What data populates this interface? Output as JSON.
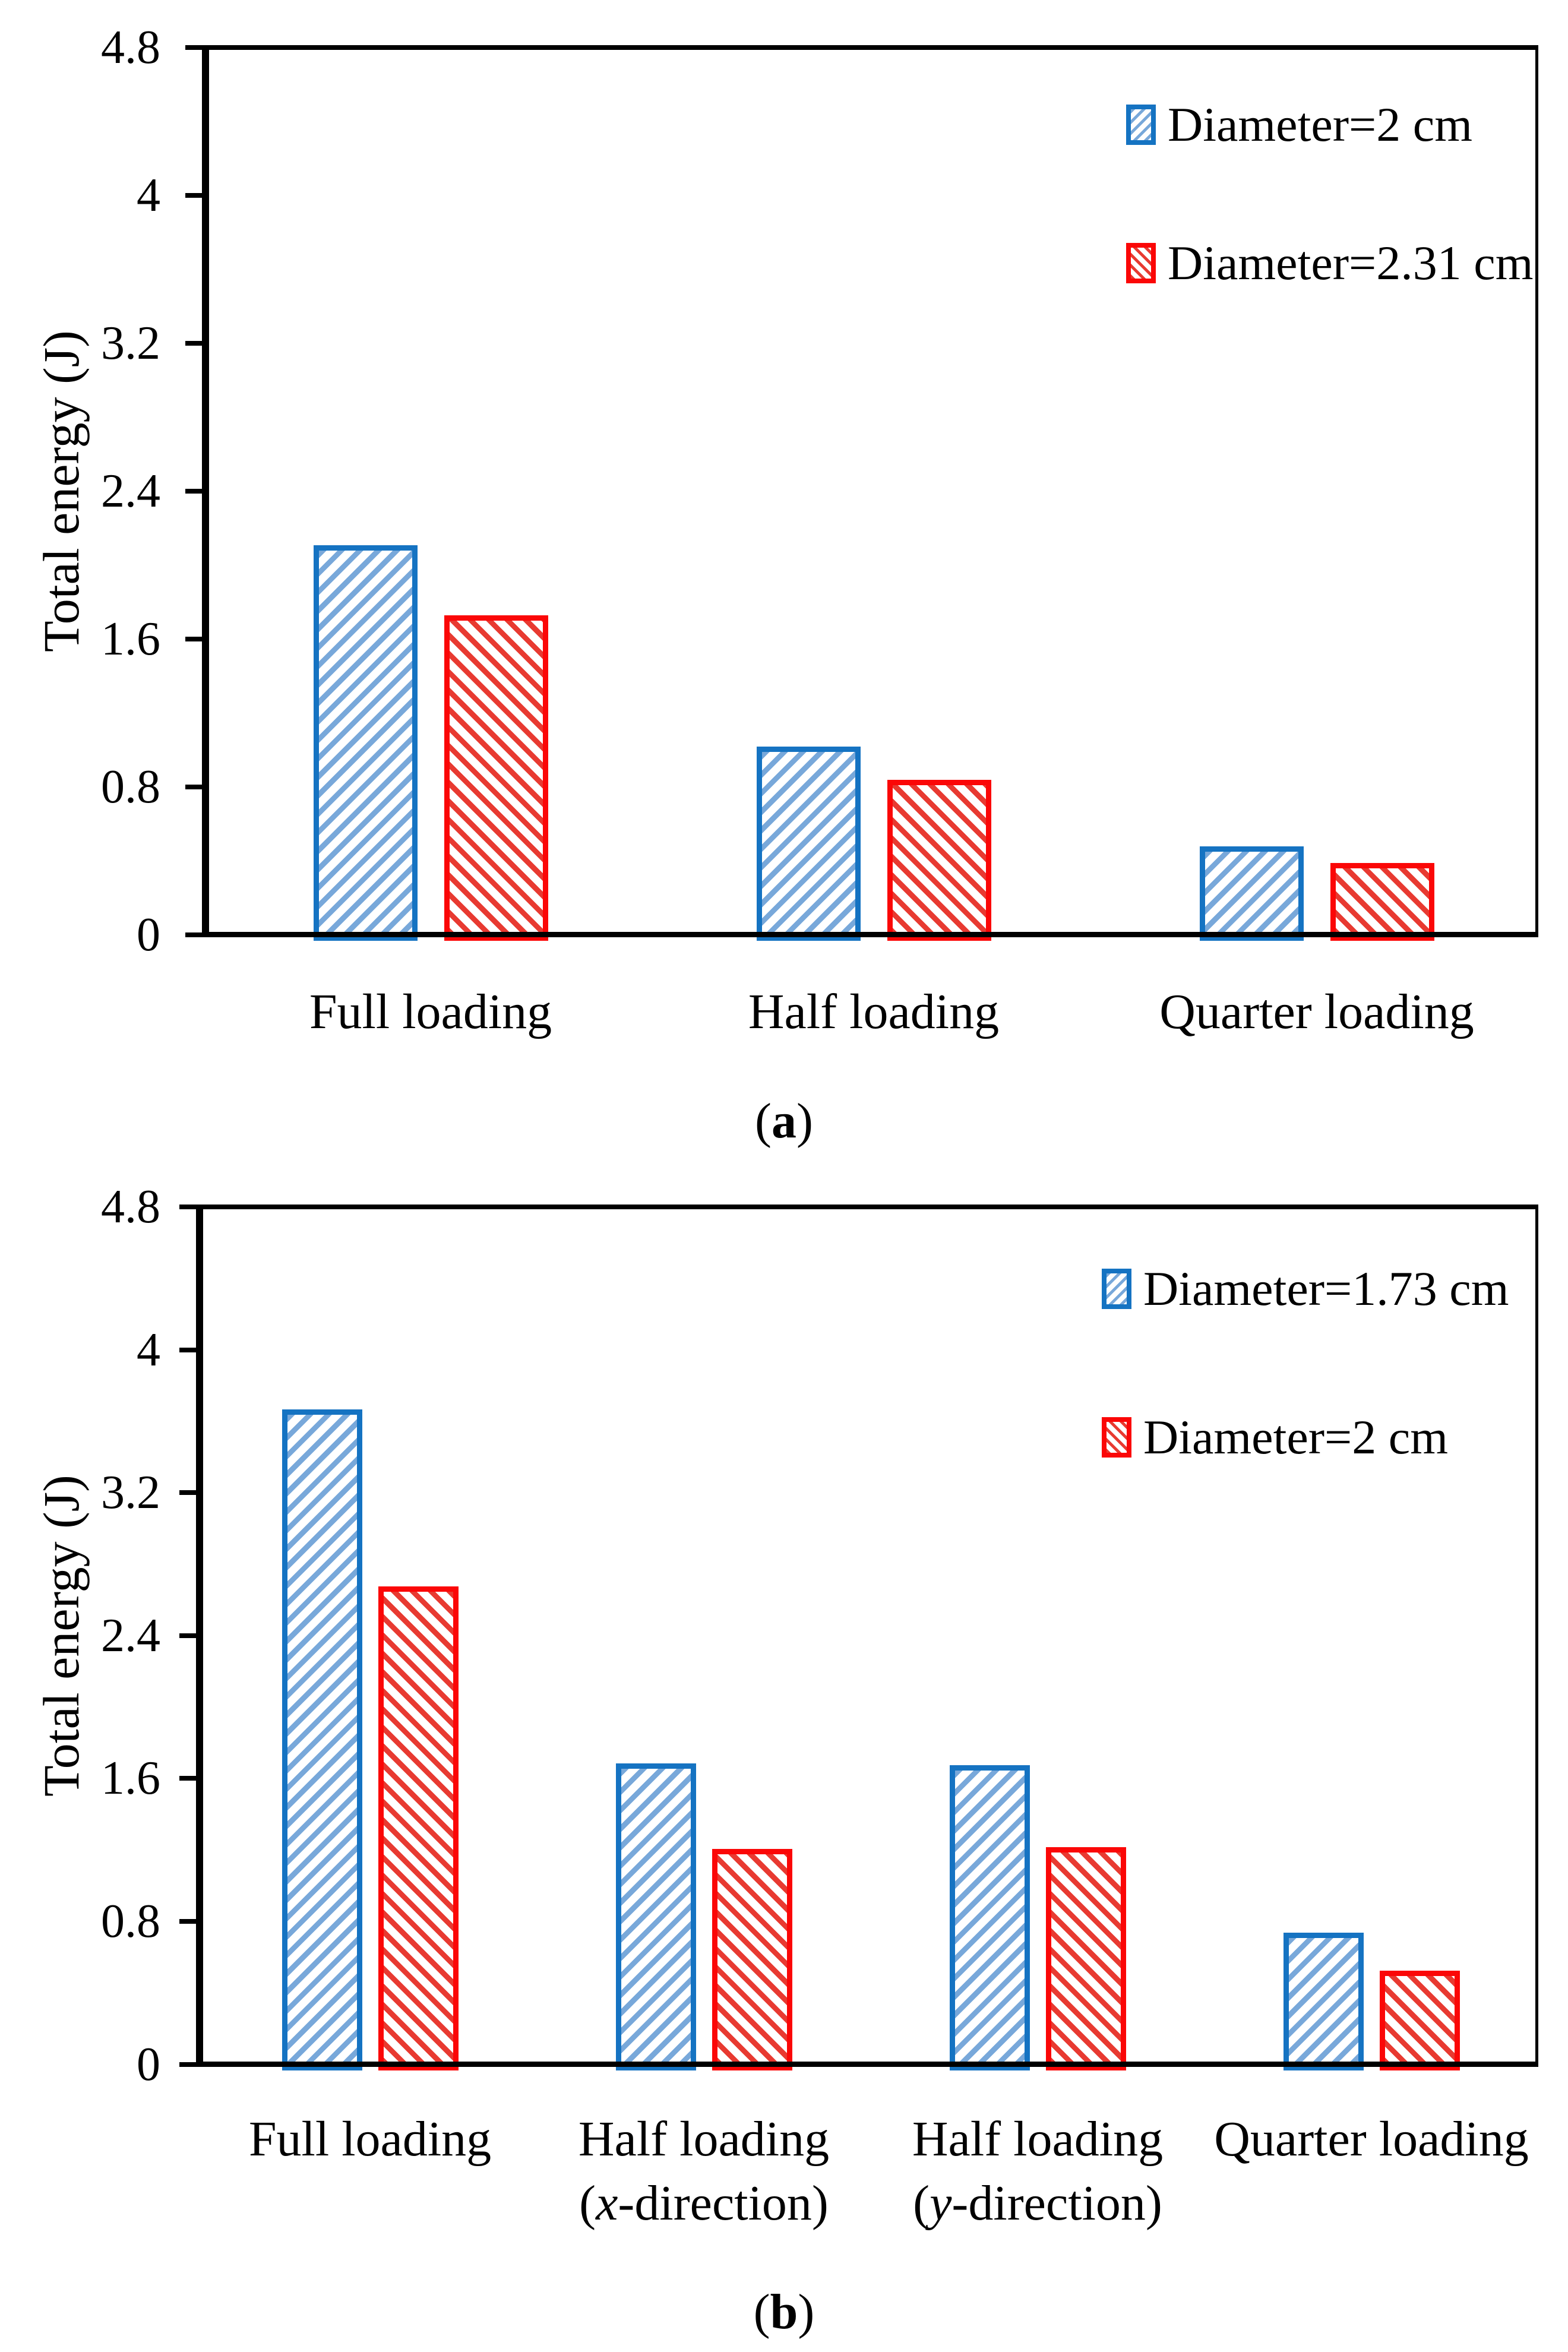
{
  "chart_data": [
    {
      "type": "bar",
      "panel": {
        "open": "(",
        "letter": "a",
        "close": ")"
      },
      "ylabel": "Total energy (J)",
      "ylim": [
        0,
        4.8
      ],
      "grid": false,
      "legend_position": "top-right",
      "yticks": [
        {
          "v": 0,
          "label": "0"
        },
        {
          "v": 0.8,
          "label": "0.8"
        },
        {
          "v": 1.6,
          "label": "1.6"
        },
        {
          "v": 2.4,
          "label": "2.4"
        },
        {
          "v": 3.2,
          "label": "3.2"
        },
        {
          "v": 4,
          "label": "4"
        },
        {
          "v": 4.8,
          "label": "4.8"
        }
      ],
      "categories": [
        {
          "line1": "Full loading"
        },
        {
          "line1": "Half loading"
        },
        {
          "line1": "Quarter loading"
        }
      ],
      "series": [
        {
          "name": "Diameter=2 cm",
          "border_color": "#1573C2",
          "hatch_color": "#78A8DA",
          "hatch": "/",
          "values": [
            2.14,
            1.05,
            0.51
          ]
        },
        {
          "name": "Diameter=2.31 cm",
          "border_color": "#FB0707",
          "hatch_color": "#E83A31",
          "hatch": "\\",
          "values": [
            1.76,
            0.87,
            0.42
          ]
        }
      ]
    },
    {
      "type": "bar",
      "panel": {
        "open": "(",
        "letter": "b",
        "close": ")"
      },
      "ylabel": "Total energy (J)",
      "ylim": [
        0,
        4.8
      ],
      "grid": false,
      "legend_position": "top-right",
      "yticks": [
        {
          "v": 0,
          "label": "0"
        },
        {
          "v": 0.8,
          "label": "0.8"
        },
        {
          "v": 1.6,
          "label": "1.6"
        },
        {
          "v": 2.4,
          "label": "2.4"
        },
        {
          "v": 3.2,
          "label": "3.2"
        },
        {
          "v": 4,
          "label": "4"
        },
        {
          "v": 4.8,
          "label": "4.8"
        }
      ],
      "categories": [
        {
          "line1": "Full loading"
        },
        {
          "line1": "Half loading",
          "line2": {
            "open": "(",
            "var": "x",
            "rest": "-direction)"
          }
        },
        {
          "line1": "Half loading",
          "line2": {
            "open": "(",
            "var": "y",
            "rest": "-direction)"
          }
        },
        {
          "line1": "Quarter loading"
        }
      ],
      "series": [
        {
          "name": "Diameter=1.73 cm",
          "border_color": "#1573C2",
          "hatch_color": "#78A8DA",
          "hatch": "/",
          "values": [
            3.7,
            1.72,
            1.71,
            0.77
          ]
        },
        {
          "name": "Diameter=2 cm",
          "border_color": "#FB0707",
          "hatch_color": "#E83A31",
          "hatch": "\\",
          "values": [
            2.71,
            1.24,
            1.25,
            0.56
          ]
        }
      ]
    }
  ]
}
